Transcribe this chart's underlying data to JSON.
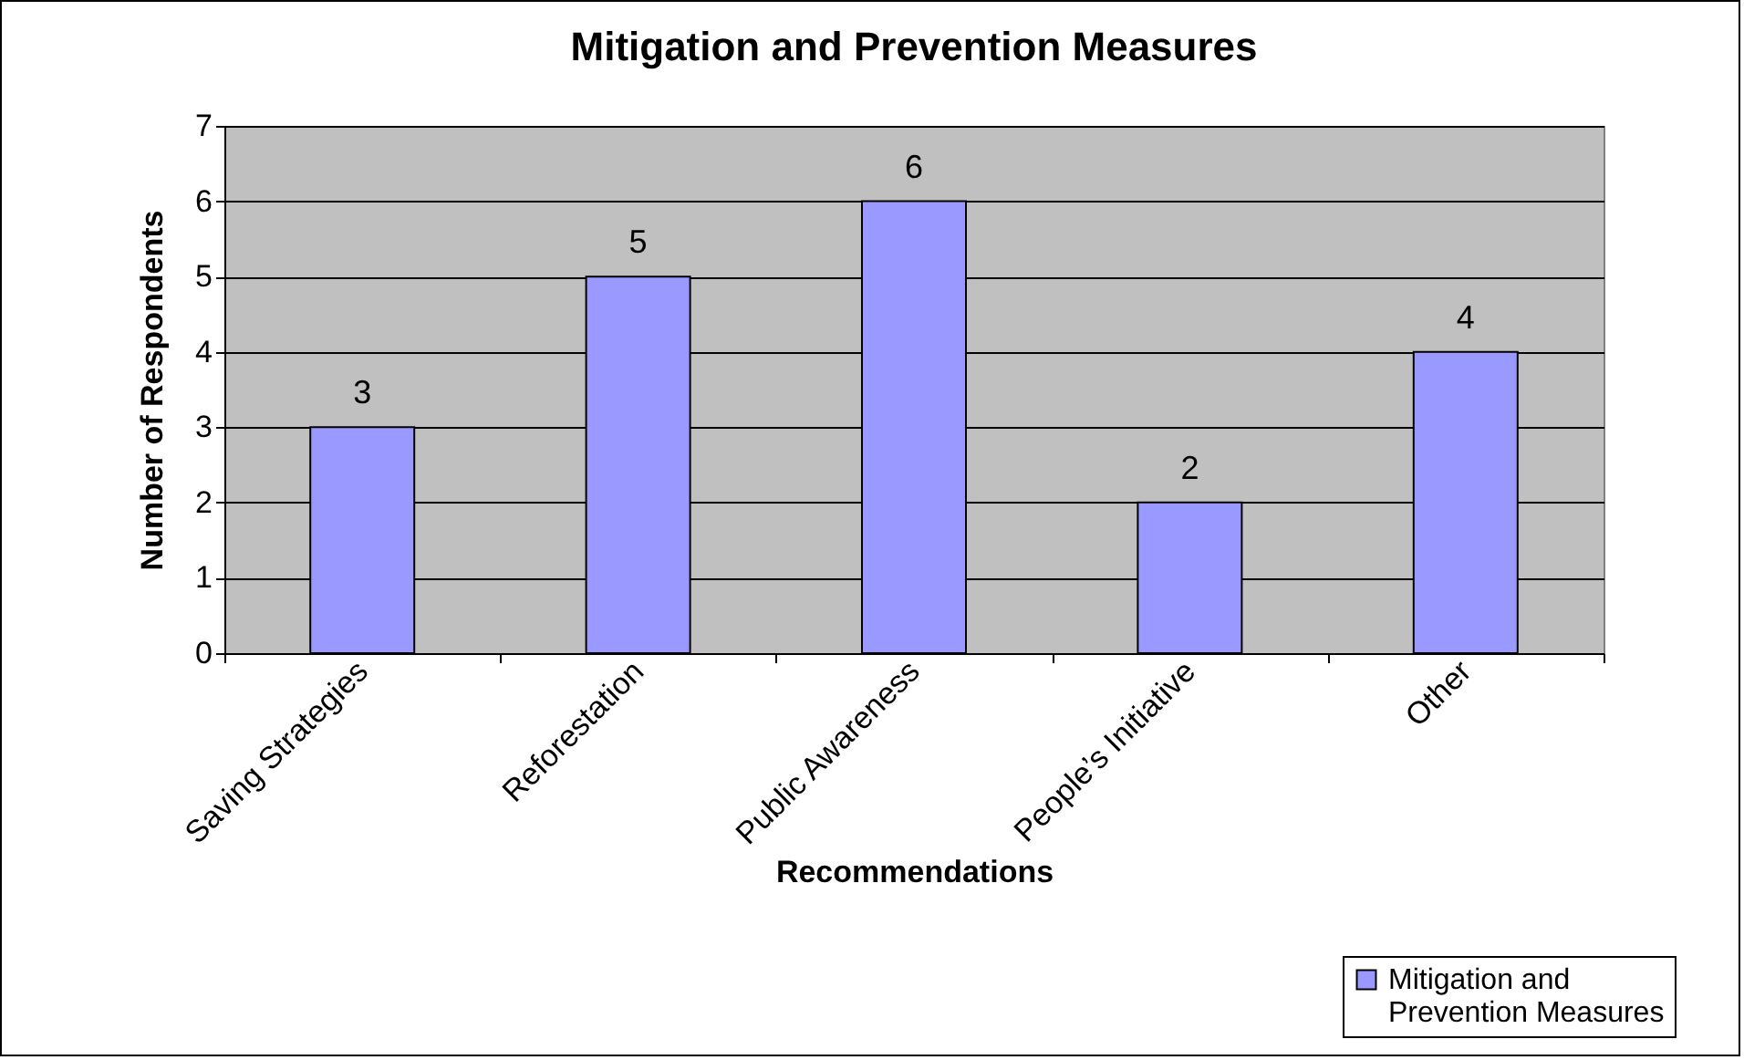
{
  "chart_data": {
    "type": "bar",
    "title": "Mitigation and Prevention Measures",
    "xlabel": "Recommendations",
    "ylabel": "Number of Respondents",
    "categories": [
      "Saving Strategies",
      "Reforestation",
      "Public Awareness",
      "People’s Initiative",
      "Other"
    ],
    "series": [
      {
        "name": "Mitigation and Prevention Measures",
        "color": "#9999ff",
        "values": [
          3,
          5,
          6,
          2,
          4
        ]
      }
    ],
    "ylim": [
      0,
      7
    ],
    "yticks": [
      0,
      1,
      2,
      3,
      4,
      5,
      6,
      7
    ],
    "grid": "y",
    "data_labels": true,
    "legend": "bottom right"
  }
}
